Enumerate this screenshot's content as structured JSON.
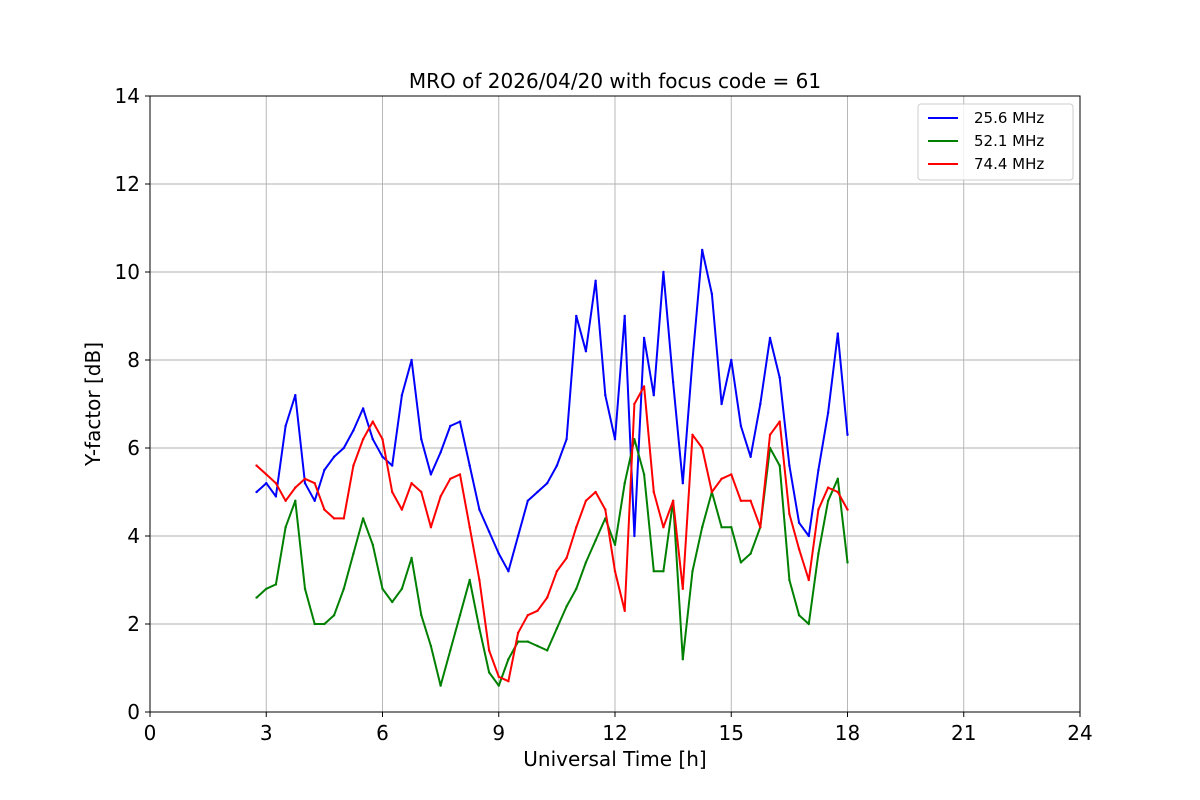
{
  "chart_data": {
    "type": "line",
    "title": "MRO of 2026/04/20 with focus code = 61",
    "xlabel": "Universal Time [h]",
    "ylabel": "Y-factor [dB]",
    "xlim": [
      0,
      24
    ],
    "ylim": [
      0,
      14
    ],
    "xticks": [
      0,
      3,
      6,
      9,
      12,
      15,
      18,
      21,
      24
    ],
    "yticks": [
      0,
      2,
      4,
      6,
      8,
      10,
      12,
      14
    ],
    "grid": true,
    "legend_position": "top-right",
    "series": [
      {
        "name": "25.6 MHz",
        "color": "#0000ff",
        "x": [
          2.75,
          3.0,
          3.25,
          3.5,
          3.75,
          4.0,
          4.25,
          4.5,
          4.75,
          5.0,
          5.25,
          5.5,
          5.75,
          6.0,
          6.25,
          6.5,
          6.75,
          7.0,
          7.25,
          7.5,
          7.75,
          8.0,
          8.25,
          8.5,
          8.75,
          9.0,
          9.25,
          9.5,
          9.75,
          10.0,
          10.25,
          10.5,
          10.75,
          11.0,
          11.25,
          11.5,
          11.75,
          12.0,
          12.25,
          12.5,
          12.75,
          13.0,
          13.25,
          13.5,
          13.75,
          14.0,
          14.25,
          14.5,
          14.75,
          15.0,
          15.25,
          15.5,
          15.75,
          16.0,
          16.25,
          16.5,
          16.75,
          17.0,
          17.25,
          17.5,
          17.75,
          18.0
        ],
        "y": [
          5.0,
          5.2,
          4.9,
          6.5,
          7.2,
          5.2,
          4.8,
          5.5,
          5.8,
          6.0,
          6.4,
          6.9,
          6.2,
          5.8,
          5.6,
          7.2,
          8.0,
          6.2,
          5.4,
          5.9,
          6.5,
          6.6,
          5.6,
          4.6,
          4.1,
          3.6,
          3.2,
          4.0,
          4.8,
          5.0,
          5.2,
          5.6,
          6.2,
          9.0,
          8.2,
          9.8,
          7.2,
          6.2,
          9.0,
          4.0,
          8.5,
          7.2,
          10.0,
          7.5,
          5.2,
          8.0,
          10.5,
          9.5,
          7.0,
          8.0,
          6.5,
          5.8,
          7.0,
          8.5,
          7.6,
          5.6,
          4.3,
          4.0,
          5.5,
          6.8,
          8.6,
          6.3
        ]
      },
      {
        "name": "52.1 MHz",
        "color": "#008000",
        "x": [
          2.75,
          3.0,
          3.25,
          3.5,
          3.75,
          4.0,
          4.25,
          4.5,
          4.75,
          5.0,
          5.25,
          5.5,
          5.75,
          6.0,
          6.25,
          6.5,
          6.75,
          7.0,
          7.25,
          7.5,
          7.75,
          8.0,
          8.25,
          8.5,
          8.75,
          9.0,
          9.25,
          9.5,
          9.75,
          10.0,
          10.25,
          10.5,
          10.75,
          11.0,
          11.25,
          11.5,
          11.75,
          12.0,
          12.25,
          12.5,
          12.75,
          13.0,
          13.25,
          13.5,
          13.75,
          14.0,
          14.25,
          14.5,
          14.75,
          15.0,
          15.25,
          15.5,
          15.75,
          16.0,
          16.25,
          16.5,
          16.75,
          17.0,
          17.25,
          17.5,
          17.75,
          18.0
        ],
        "y": [
          2.6,
          2.8,
          2.9,
          4.2,
          4.8,
          2.8,
          2.0,
          2.0,
          2.2,
          2.8,
          3.6,
          4.4,
          3.8,
          2.8,
          2.5,
          2.8,
          3.5,
          2.2,
          1.5,
          0.6,
          1.4,
          2.2,
          3.0,
          1.9,
          0.9,
          0.6,
          1.2,
          1.6,
          1.6,
          1.5,
          1.4,
          1.9,
          2.4,
          2.8,
          3.4,
          3.9,
          4.4,
          3.8,
          5.2,
          6.2,
          5.4,
          3.2,
          3.2,
          4.8,
          1.2,
          3.2,
          4.2,
          5.0,
          4.2,
          4.2,
          3.4,
          3.6,
          4.2,
          6.0,
          5.6,
          3.0,
          2.2,
          2.0,
          3.6,
          4.8,
          5.3,
          3.4
        ]
      },
      {
        "name": "74.4 MHz",
        "color": "#ff0000",
        "x": [
          2.75,
          3.0,
          3.25,
          3.5,
          3.75,
          4.0,
          4.25,
          4.5,
          4.75,
          5.0,
          5.25,
          5.5,
          5.75,
          6.0,
          6.25,
          6.5,
          6.75,
          7.0,
          7.25,
          7.5,
          7.75,
          8.0,
          8.25,
          8.5,
          8.75,
          9.0,
          9.25,
          9.5,
          9.75,
          10.0,
          10.25,
          10.5,
          10.75,
          11.0,
          11.25,
          11.5,
          11.75,
          12.0,
          12.25,
          12.5,
          12.75,
          13.0,
          13.25,
          13.5,
          13.75,
          14.0,
          14.25,
          14.5,
          14.75,
          15.0,
          15.25,
          15.5,
          15.75,
          16.0,
          16.25,
          16.5,
          16.75,
          17.0,
          17.25,
          17.5,
          17.75,
          18.0
        ],
        "y": [
          5.6,
          5.4,
          5.2,
          4.8,
          5.1,
          5.3,
          5.2,
          4.6,
          4.4,
          4.4,
          5.6,
          6.2,
          6.6,
          6.2,
          5.0,
          4.6,
          5.2,
          5.0,
          4.2,
          4.9,
          5.3,
          5.4,
          4.2,
          3.0,
          1.4,
          0.8,
          0.7,
          1.8,
          2.2,
          2.3,
          2.6,
          3.2,
          3.5,
          4.2,
          4.8,
          5.0,
          4.6,
          3.2,
          2.3,
          7.0,
          7.4,
          5.0,
          4.2,
          4.8,
          2.8,
          6.3,
          6.0,
          5.0,
          5.3,
          5.4,
          4.8,
          4.8,
          4.2,
          6.3,
          6.6,
          4.5,
          3.7,
          3.0,
          4.6,
          5.1,
          5.0,
          4.6
        ]
      }
    ]
  }
}
